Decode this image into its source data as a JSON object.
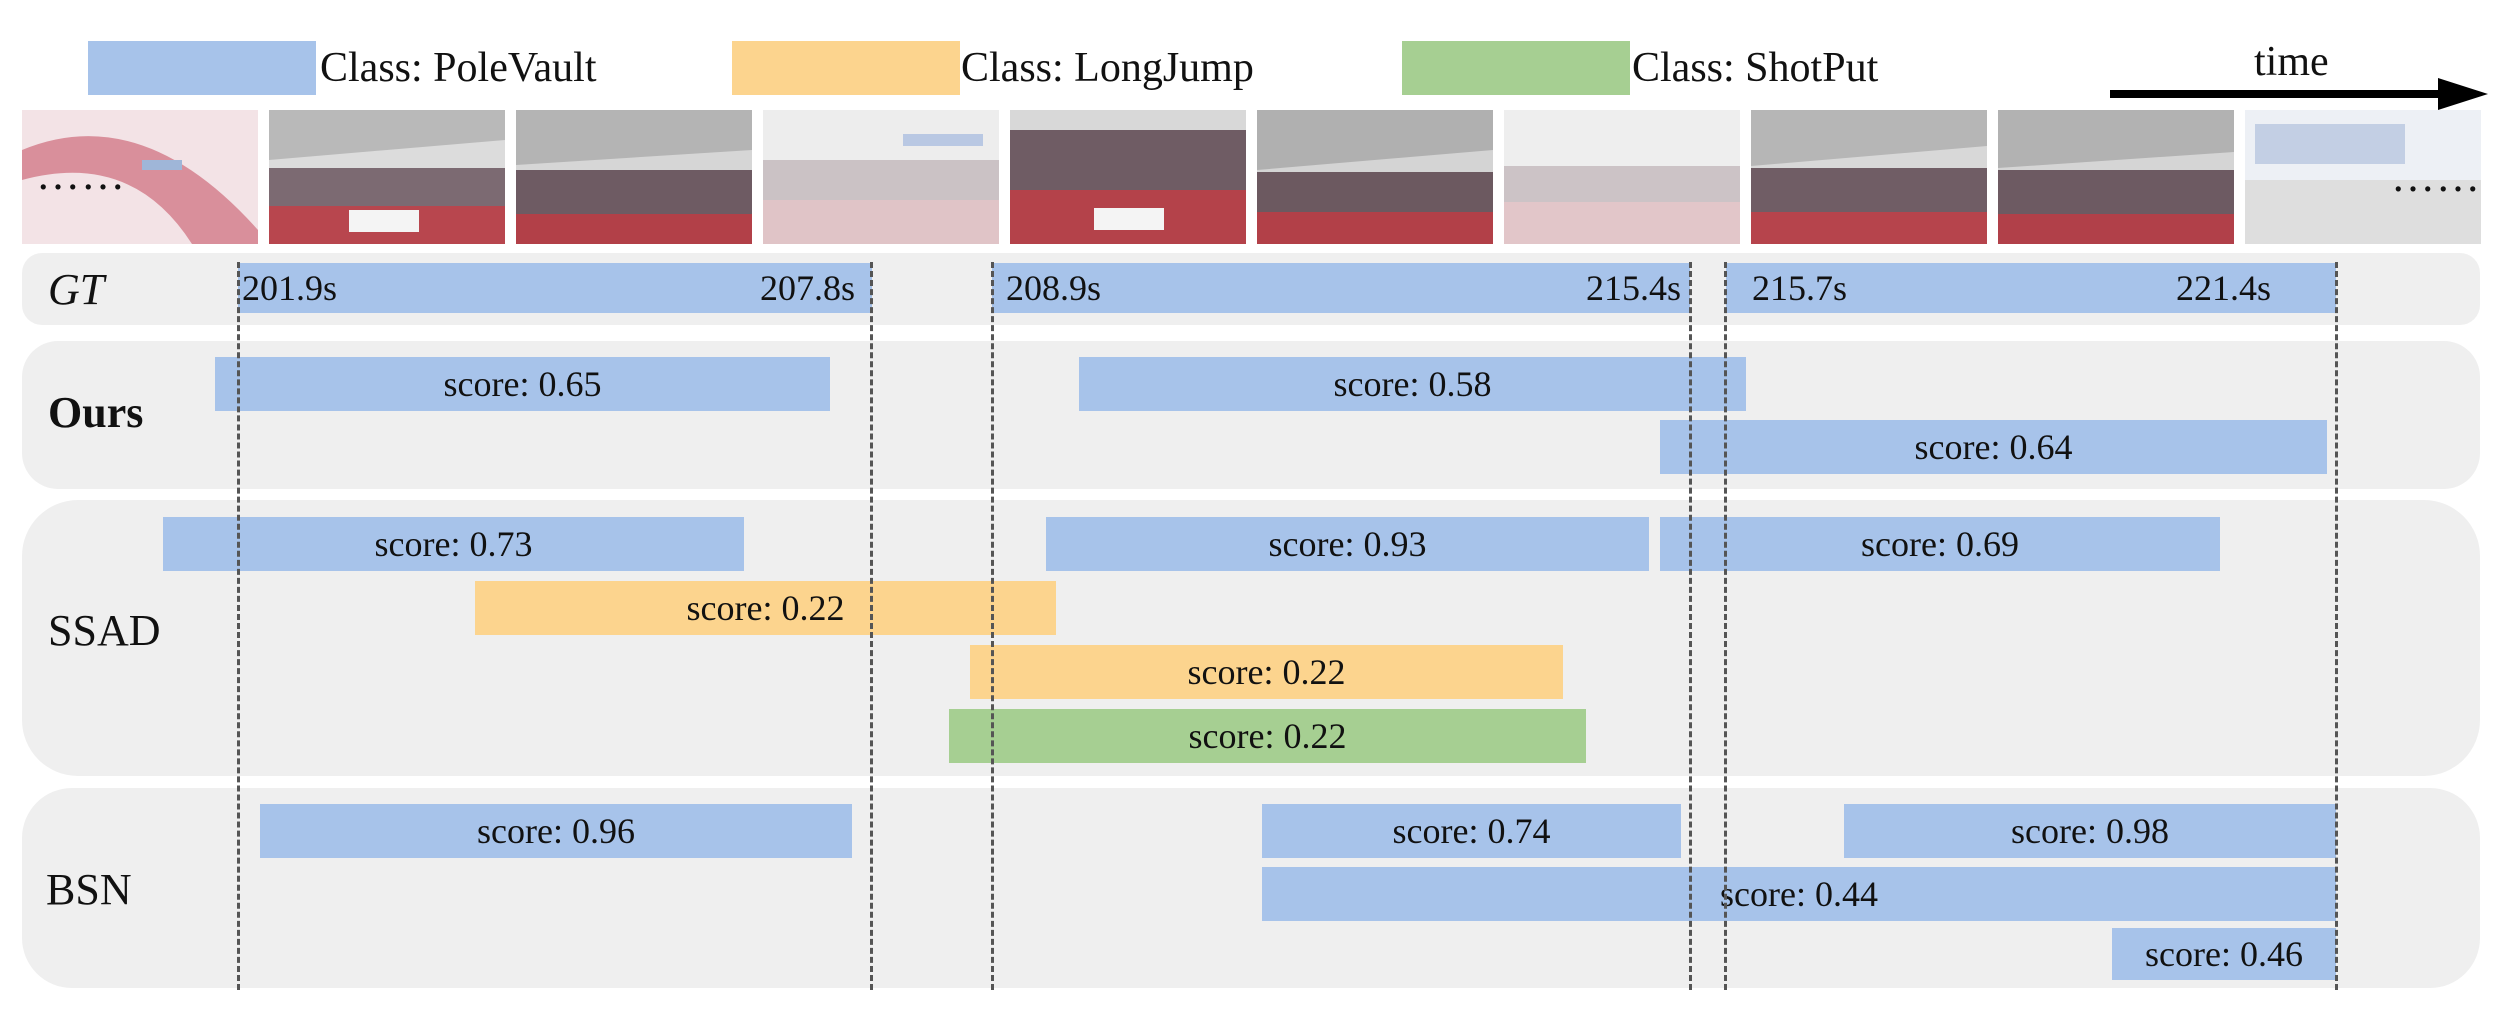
{
  "legend": {
    "items": [
      {
        "label": "Class: PoleVault",
        "color": "#a7c3ea"
      },
      {
        "label": "Class: LongJump",
        "color": "#fcd48e"
      },
      {
        "label": "Class: ShotPut",
        "color": "#a6cf92"
      }
    ],
    "time_label": "time"
  },
  "filmstrip": {
    "ellipsis_left": "……",
    "ellipsis_right": "……",
    "frames": [
      {
        "scene": "faded-red-curve"
      },
      {
        "scene": "stadium-crowd"
      },
      {
        "scene": "stadium-crowd"
      },
      {
        "scene": "faded-stadium"
      },
      {
        "scene": "stadium-crowd"
      },
      {
        "scene": "stadium-crowd"
      },
      {
        "scene": "faded-stadium"
      },
      {
        "scene": "stadium-crowd"
      },
      {
        "scene": "stadium-crowd"
      },
      {
        "scene": "faded-banner"
      }
    ]
  },
  "rows": {
    "gt": {
      "label": "GT",
      "segments": [
        {
          "start_label": "201.9s",
          "end_label": "207.8s"
        },
        {
          "start_label": "208.9s",
          "end_label": "215.4s"
        },
        {
          "start_label": "215.7s",
          "end_label": "221.4s"
        }
      ]
    },
    "ours": {
      "label": "Ours",
      "predictions": [
        {
          "class": "PoleVault",
          "score_label": "score: 0.65"
        },
        {
          "class": "PoleVault",
          "score_label": "score: 0.58"
        },
        {
          "class": "PoleVault",
          "score_label": "score: 0.64"
        }
      ]
    },
    "ssad": {
      "label": "SSAD",
      "predictions": [
        {
          "class": "PoleVault",
          "score_label": "score: 0.73"
        },
        {
          "class": "PoleVault",
          "score_label": "score: 0.93"
        },
        {
          "class": "PoleVault",
          "score_label": "score: 0.69"
        },
        {
          "class": "LongJump",
          "score_label": "score: 0.22"
        },
        {
          "class": "LongJump",
          "score_label": "score: 0.22"
        },
        {
          "class": "ShotPut",
          "score_label": "score: 0.22"
        }
      ]
    },
    "bsn": {
      "label": "BSN",
      "predictions": [
        {
          "class": "PoleVault",
          "score_label": "score: 0.96"
        },
        {
          "class": "PoleVault",
          "score_label": "score: 0.74"
        },
        {
          "class": "PoleVault",
          "score_label": "score: 0.98"
        },
        {
          "class": "PoleVault",
          "score_label": "score: 0.44"
        },
        {
          "class": "PoleVault",
          "score_label": "score: 0.46"
        }
      ]
    }
  }
}
